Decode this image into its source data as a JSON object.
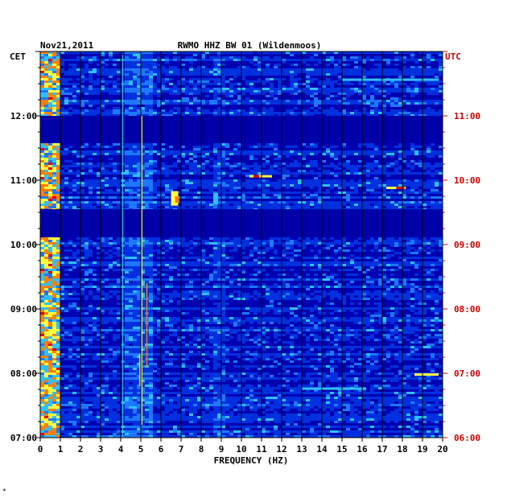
{
  "header": {
    "date": "Nov21,2011",
    "station": "RWMO HHZ BW 01 (Wildenmoos)"
  },
  "chart_data": {
    "type": "heatmap",
    "title": "RWMO HHZ BW 01 (Wildenmoos)",
    "date": "Nov21,2011",
    "xlabel": "FREQUENCY (HZ)",
    "xlim": [
      0,
      20
    ],
    "x_ticks": [
      "0",
      "1",
      "2",
      "3",
      "4",
      "5",
      "6",
      "7",
      "8",
      "9",
      "10",
      "11",
      "12",
      "13",
      "14",
      "15",
      "16",
      "17",
      "18",
      "19",
      "20"
    ],
    "left_axis": {
      "timezone": "CET",
      "tick_labels": [
        "07:00",
        "08:00",
        "09:00",
        "10:00",
        "11:00",
        "12:00"
      ],
      "tick_hours": [
        7,
        8,
        9,
        10,
        11,
        12
      ],
      "range_hours": [
        7,
        13
      ]
    },
    "right_axis": {
      "timezone": "UTC",
      "tick_labels": [
        "06:00",
        "07:00",
        "08:00",
        "09:00",
        "10:00",
        "11:00"
      ],
      "tick_hours": [
        6,
        7,
        8,
        9,
        10,
        11
      ],
      "range_hours": [
        6,
        12
      ]
    },
    "colormap": [
      "#0000b0",
      "#0030e0",
      "#1e78ff",
      "#30c0ff",
      "#ffff40",
      "#ff8000",
      "#e00000"
    ],
    "gaps_cet": [
      [
        12.0,
        11.6
      ],
      [
        10.55,
        10.13
      ]
    ],
    "grid": true
  },
  "footnote": "*"
}
